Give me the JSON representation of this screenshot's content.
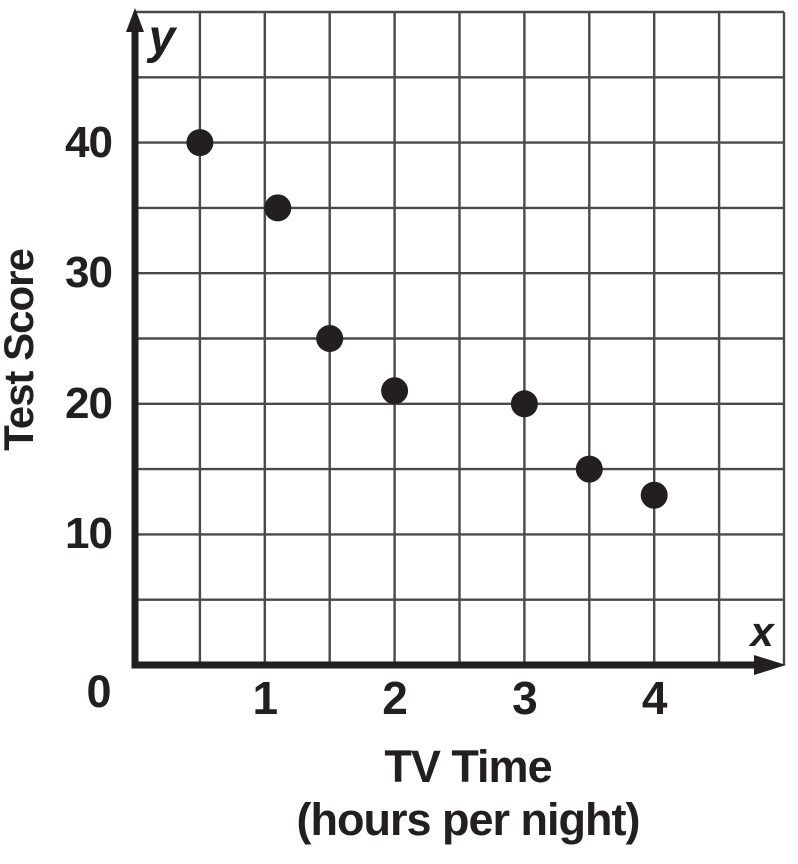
{
  "figure": {
    "background": "#ffffff"
  },
  "chart_data": {
    "type": "scatter",
    "title": "",
    "xlabel": "TV Time",
    "xlabel_sub": "(hours per night)",
    "ylabel": "Test Score",
    "x_axis_letter": "x",
    "y_axis_letter": "y",
    "origin_label": "0",
    "xlim": [
      0,
      5
    ],
    "ylim": [
      0,
      50
    ],
    "x_grid_step": 0.5,
    "y_grid_step": 5,
    "grid": true,
    "legend": false,
    "x_ticks": [
      {
        "value": 1,
        "label": "1"
      },
      {
        "value": 2,
        "label": "2"
      },
      {
        "value": 3,
        "label": "3"
      },
      {
        "value": 4,
        "label": "4"
      }
    ],
    "y_ticks": [
      {
        "value": 10,
        "label": "10"
      },
      {
        "value": 20,
        "label": "20"
      },
      {
        "value": 30,
        "label": "30"
      },
      {
        "value": 40,
        "label": "40"
      }
    ],
    "points": [
      {
        "x": 0.5,
        "y": 40
      },
      {
        "x": 1.1,
        "y": 35
      },
      {
        "x": 1.5,
        "y": 25
      },
      {
        "x": 2,
        "y": 21
      },
      {
        "x": 3,
        "y": 20
      },
      {
        "x": 3.5,
        "y": 15
      },
      {
        "x": 4,
        "y": 13
      }
    ],
    "colors": {
      "ink": "#231f20",
      "grid_line": "#4a4a4a",
      "point_fill": "#231f20"
    }
  }
}
